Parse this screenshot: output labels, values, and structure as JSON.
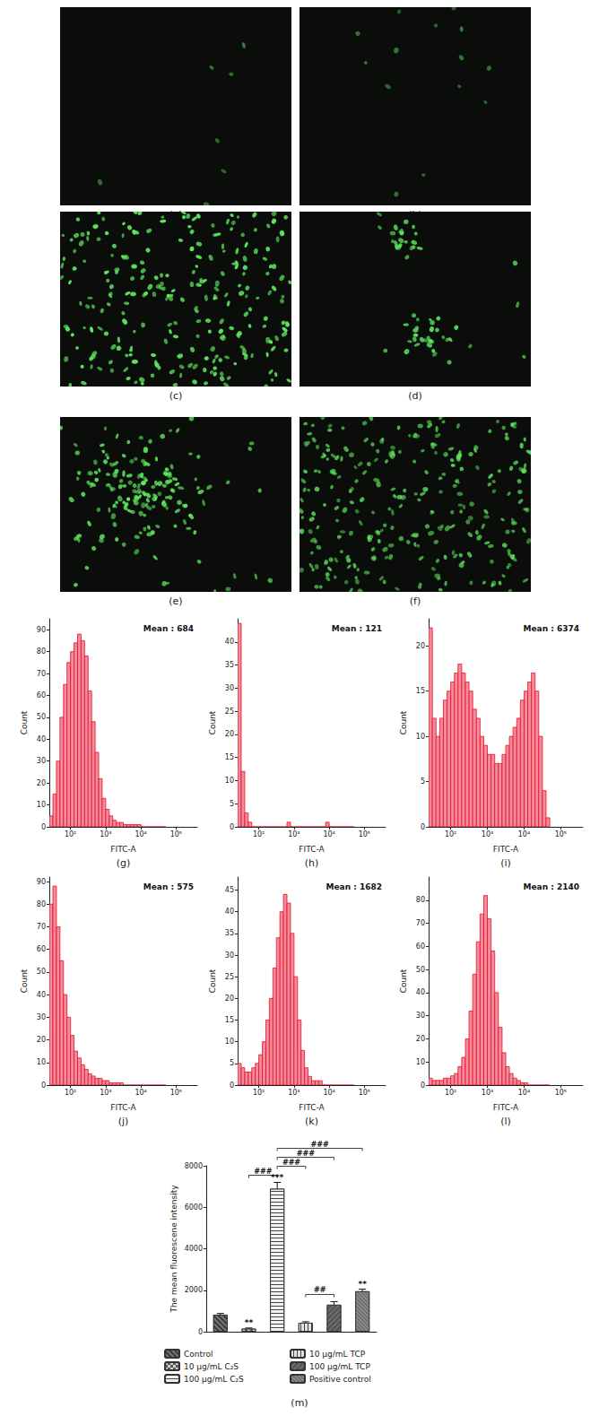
{
  "images": [
    {
      "label": "(a)"
    },
    {
      "label": "(b)"
    },
    {
      "label": "(c)"
    },
    {
      "label": "(d)"
    },
    {
      "label": "(e)"
    },
    {
      "label": "(f)"
    }
  ],
  "chart_data": [
    {
      "type": "histogram",
      "label": "(g)",
      "annotation": "Mean : 684",
      "xlabel": "FITC-A",
      "ylabel": "Count",
      "log": "x",
      "grid": false,
      "color": "#f28aa0",
      "bins": [
        25.1,
        31.6,
        39.8,
        50.1,
        63.1,
        79.4,
        100,
        125.9,
        158.5,
        199.5,
        251.2,
        316.2,
        398.1,
        501.2,
        631,
        794.3,
        1000,
        1258.9,
        1584.9,
        1995.3,
        2511.9,
        3162.3,
        3981.1,
        5011.9,
        6309.6,
        7943.3,
        10000,
        12589,
        15849,
        19953,
        25119,
        31623,
        39811,
        50119
      ],
      "counts": [
        5,
        15,
        30,
        50,
        65,
        75,
        80,
        84,
        88,
        85,
        78,
        62,
        48,
        34,
        22,
        13,
        8,
        5,
        3,
        2,
        2,
        1,
        1,
        1,
        1,
        1,
        0,
        0,
        0,
        0,
        0,
        0,
        0
      ],
      "xlim": [
        25,
        400000
      ],
      "xticks": [
        {
          "value": 100,
          "label": "10²"
        },
        {
          "value": 1000,
          "label": "10³"
        },
        {
          "value": 10000,
          "label": "10⁴"
        },
        {
          "value": 100000,
          "label": "10⁵"
        }
      ],
      "ylim": [
        0,
        95
      ],
      "yticks": [
        0,
        10,
        20,
        30,
        40,
        50,
        60,
        70,
        80,
        90
      ]
    },
    {
      "type": "histogram",
      "label": "(h)",
      "annotation": "Mean : 121",
      "xlabel": "FITC-A",
      "ylabel": "Count",
      "log": "x",
      "grid": false,
      "color": "#f28aa0",
      "bins": [
        25.1,
        31.6,
        39.8,
        50.1,
        63.1,
        79.4,
        100,
        125.9,
        158.5,
        199.5,
        251.2,
        316.2,
        398.1,
        501.2,
        631,
        794.3,
        1000,
        1258.9,
        1584.9,
        1995.3,
        2511.9,
        3162.3,
        3981.1,
        5011.9,
        6309.6,
        7943.3,
        10000,
        12589,
        15849,
        19953,
        25119,
        31623,
        39811,
        50119
      ],
      "counts": [
        44,
        12,
        3,
        1,
        0,
        0,
        0,
        0,
        0,
        0,
        0,
        0,
        0,
        0,
        1,
        0,
        0,
        0,
        0,
        0,
        0,
        0,
        0,
        0,
        0,
        1,
        0,
        0,
        0,
        0,
        0,
        0,
        0
      ],
      "xlim": [
        25,
        400000
      ],
      "xticks": [
        {
          "value": 100,
          "label": "10²"
        },
        {
          "value": 1000,
          "label": "10³"
        },
        {
          "value": 10000,
          "label": "10⁴"
        },
        {
          "value": 100000,
          "label": "10⁵"
        }
      ],
      "ylim": [
        0,
        45
      ],
      "yticks": [
        0,
        5,
        10,
        15,
        20,
        25,
        30,
        35,
        40
      ]
    },
    {
      "type": "histogram",
      "label": "(i)",
      "annotation": "Mean : 6374",
      "xlabel": "FITC-A",
      "ylabel": "Count",
      "log": "x",
      "grid": false,
      "color": "#f28aa0",
      "bins": [
        25.1,
        31.6,
        39.8,
        50.1,
        63.1,
        79.4,
        100,
        125.9,
        158.5,
        199.5,
        251.2,
        316.2,
        398.1,
        501.2,
        631,
        794.3,
        1000,
        1258.9,
        1584.9,
        1995.3,
        2511.9,
        3162.3,
        3981.1,
        5011.9,
        6309.6,
        7943.3,
        10000,
        12589,
        15849,
        19953,
        25119,
        31623,
        39811,
        50119
      ],
      "counts": [
        22,
        12,
        10,
        12,
        14,
        15,
        16,
        17,
        18,
        17,
        16,
        15,
        13,
        12,
        10,
        9,
        8,
        8,
        7,
        7,
        8,
        9,
        10,
        11,
        12,
        14,
        15,
        16,
        17,
        15,
        10,
        4,
        1
      ],
      "xlim": [
        25,
        400000
      ],
      "xticks": [
        {
          "value": 100,
          "label": "10²"
        },
        {
          "value": 1000,
          "label": "10³"
        },
        {
          "value": 10000,
          "label": "10⁴"
        },
        {
          "value": 100000,
          "label": "10⁵"
        }
      ],
      "ylim": [
        0,
        23
      ],
      "yticks": [
        0,
        5,
        10,
        15,
        20
      ]
    },
    {
      "type": "histogram",
      "label": "(j)",
      "annotation": "Mean : 575",
      "xlabel": "FITC-A",
      "ylabel": "Count",
      "log": "x",
      "grid": false,
      "color": "#f28aa0",
      "bins": [
        25.1,
        31.6,
        39.8,
        50.1,
        63.1,
        79.4,
        100,
        125.9,
        158.5,
        199.5,
        251.2,
        316.2,
        398.1,
        501.2,
        631,
        794.3,
        1000,
        1258.9,
        1584.9,
        1995.3,
        2511.9,
        3162.3,
        3981.1,
        5011.9,
        6309.6,
        7943.3,
        10000,
        12589,
        15849,
        19953,
        25119,
        31623,
        39811,
        50119
      ],
      "counts": [
        80,
        88,
        70,
        55,
        40,
        30,
        22,
        15,
        12,
        9,
        7,
        5,
        4,
        3,
        3,
        2,
        2,
        1,
        1,
        1,
        1,
        0,
        0,
        0,
        0,
        0,
        0,
        0,
        0,
        0,
        0,
        0,
        0
      ],
      "xlim": [
        25,
        400000
      ],
      "xticks": [
        {
          "value": 100,
          "label": "10²"
        },
        {
          "value": 1000,
          "label": "10³"
        },
        {
          "value": 10000,
          "label": "10⁴"
        },
        {
          "value": 100000,
          "label": "10⁵"
        }
      ],
      "ylim": [
        0,
        92
      ],
      "yticks": [
        0,
        10,
        20,
        30,
        40,
        50,
        60,
        70,
        80,
        90
      ]
    },
    {
      "type": "histogram",
      "label": "(k)",
      "annotation": "Mean : 1682",
      "xlabel": "FITC-A",
      "ylabel": "Count",
      "log": "x",
      "grid": false,
      "color": "#f28aa0",
      "bins": [
        25.1,
        31.6,
        39.8,
        50.1,
        63.1,
        79.4,
        100,
        125.9,
        158.5,
        199.5,
        251.2,
        316.2,
        398.1,
        501.2,
        631,
        794.3,
        1000,
        1258.9,
        1584.9,
        1995.3,
        2511.9,
        3162.3,
        3981.1,
        5011.9,
        6309.6,
        7943.3,
        10000,
        12589,
        15849,
        19953,
        25119,
        31623,
        39811,
        50119
      ],
      "counts": [
        5,
        4,
        3,
        3,
        4,
        5,
        7,
        10,
        15,
        20,
        27,
        34,
        40,
        44,
        42,
        35,
        25,
        15,
        8,
        4,
        2,
        1,
        1,
        1,
        0,
        0,
        0,
        0,
        0,
        0,
        0,
        0,
        0
      ],
      "xlim": [
        25,
        400000
      ],
      "xticks": [
        {
          "value": 100,
          "label": "10²"
        },
        {
          "value": 1000,
          "label": "10³"
        },
        {
          "value": 10000,
          "label": "10⁴"
        },
        {
          "value": 100000,
          "label": "10⁵"
        }
      ],
      "ylim": [
        0,
        48
      ],
      "yticks": [
        0,
        5,
        10,
        15,
        20,
        25,
        30,
        35,
        40,
        45
      ]
    },
    {
      "type": "histogram",
      "label": "(l)",
      "annotation": "Mean : 2140",
      "xlabel": "FITC-A",
      "ylabel": "Count",
      "log": "x",
      "grid": false,
      "color": "#f28aa0",
      "bins": [
        25.1,
        31.6,
        39.8,
        50.1,
        63.1,
        79.4,
        100,
        125.9,
        158.5,
        199.5,
        251.2,
        316.2,
        398.1,
        501.2,
        631,
        794.3,
        1000,
        1258.9,
        1584.9,
        1995.3,
        2511.9,
        3162.3,
        3981.1,
        5011.9,
        6309.6,
        7943.3,
        10000,
        12589,
        15849,
        19953,
        25119,
        31623,
        39811,
        50119
      ],
      "counts": [
        3,
        2,
        2,
        2,
        3,
        3,
        4,
        5,
        8,
        12,
        20,
        32,
        48,
        62,
        74,
        82,
        72,
        58,
        40,
        25,
        14,
        8,
        5,
        3,
        2,
        1,
        1,
        0,
        0,
        0,
        0,
        0,
        0
      ],
      "xlim": [
        25,
        400000
      ],
      "xticks": [
        {
          "value": 100,
          "label": "10²"
        },
        {
          "value": 1000,
          "label": "10³"
        },
        {
          "value": 10000,
          "label": "10⁴"
        },
        {
          "value": 100000,
          "label": "10⁵"
        }
      ],
      "ylim": [
        0,
        90
      ],
      "yticks": [
        0,
        10,
        20,
        30,
        40,
        50,
        60,
        70,
        80
      ]
    },
    {
      "type": "bar",
      "label": "(m)",
      "ylabel": "The mean fluorescene intensity",
      "grid": false,
      "legend": "bottom",
      "tick_labels": "y",
      "categories": [
        "Control",
        "10 μg/mL C₂S",
        "100 μg/mL C₂S",
        "10 μg/mL TCP",
        "100 μg/mL TCP",
        "Positive control"
      ],
      "values": [
        820,
        150,
        6900,
        430,
        1300,
        1950
      ],
      "errors": [
        60,
        30,
        300,
        50,
        150,
        100
      ],
      "significance": [
        null,
        "**",
        "***",
        null,
        null,
        "**"
      ],
      "comparisons": [
        {
          "from": "10 μg/mL C₂S",
          "to": "100 μg/mL C₂S",
          "label": "###"
        },
        {
          "from": "100 μg/mL C₂S",
          "to": "10 μg/mL TCP",
          "label": "###"
        },
        {
          "from": "100 μg/mL C₂S",
          "to": "100 μg/mL TCP",
          "label": "###"
        },
        {
          "from": "100 μg/mL C₂S",
          "to": "Positive control",
          "label": "###"
        },
        {
          "from": "10 μg/mL TCP",
          "to": "100 μg/mL TCP",
          "label": "##"
        }
      ],
      "colors": [
        "#7a7a7a",
        "#d0d0d0",
        "#f2f2f2",
        "#e2e2e2",
        "#555555",
        "#6e6e6e"
      ],
      "ylim": [
        0,
        8000
      ],
      "yticks": [
        0,
        2000,
        4000,
        6000,
        8000
      ]
    }
  ]
}
